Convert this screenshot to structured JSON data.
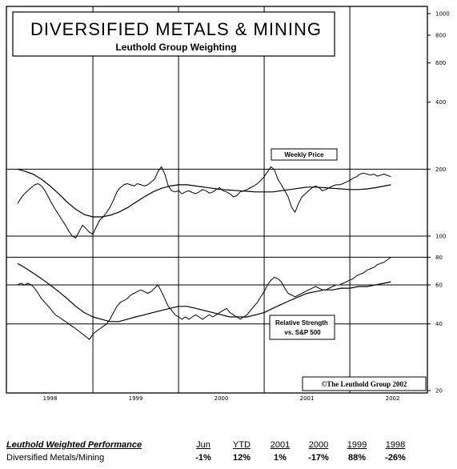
{
  "header": {
    "title": "DIVERSIFIED METALS & MINING",
    "subtitle": "Leuthold Group Weighting"
  },
  "chart_data": {
    "type": "line",
    "x_ticks": [
      "1998",
      "1999",
      "2000",
      "2001",
      "2002"
    ],
    "price_panel": {
      "scale": "log",
      "ylim": [
        100,
        1000
      ],
      "y_ticks": [
        "1000",
        "800",
        "600",
        "400",
        "200",
        "100"
      ],
      "annotation": "Weekly Price",
      "series": [
        {
          "x": [
            1997.62,
            1997.66,
            1997.7,
            1997.74,
            1997.78,
            1997.82,
            1997.86,
            1997.9,
            1997.94,
            1997.98,
            1998.02,
            1998.06,
            1998.1,
            1998.14,
            1998.18,
            1998.22,
            1998.26,
            1998.3,
            1998.34,
            1998.38,
            1998.42,
            1998.46,
            1998.5,
            1998.54,
            1998.58,
            1998.62,
            1998.66,
            1998.7,
            1998.74,
            1998.78,
            1998.82,
            1998.86,
            1998.9,
            1998.94,
            1998.98,
            1999.02,
            1999.06,
            1999.1,
            1999.14,
            1999.18,
            1999.22,
            1999.26,
            1999.3,
            1999.34,
            1999.38,
            1999.42,
            1999.46,
            1999.5,
            1999.54,
            1999.58,
            1999.62,
            1999.66,
            1999.7,
            1999.74,
            1999.78,
            1999.82,
            1999.86,
            1999.9,
            1999.94,
            1999.98,
            2000.02,
            2000.06,
            2000.1,
            2000.14,
            2000.18,
            2000.22,
            2000.26,
            2000.3,
            2000.34,
            2000.38,
            2000.42,
            2000.46,
            2000.5,
            2000.54,
            2000.58,
            2000.62,
            2000.66,
            2000.7,
            2000.74,
            2000.78,
            2000.82,
            2000.86,
            2000.9,
            2000.94,
            2000.98,
            2001.02,
            2001.06,
            2001.1,
            2001.14,
            2001.18,
            2001.22,
            2001.26,
            2001.3,
            2001.34,
            2001.38,
            2001.42,
            2001.46,
            2001.5,
            2001.54,
            2001.58,
            2001.62,
            2001.66,
            2001.7,
            2001.74,
            2001.78,
            2001.82,
            2001.86,
            2001.9,
            2001.94,
            2001.98
          ],
          "y": [
            140,
            148,
            155,
            160,
            165,
            170,
            172,
            168,
            160,
            150,
            140,
            132,
            125,
            118,
            112,
            105,
            100,
            98,
            105,
            112,
            108,
            104,
            102,
            110,
            118,
            122,
            128,
            135,
            145,
            158,
            165,
            170,
            172,
            170,
            168,
            172,
            170,
            168,
            170,
            175,
            180,
            195,
            205,
            190,
            168,
            160,
            158,
            160,
            155,
            158,
            160,
            157,
            155,
            158,
            162,
            160,
            156,
            158,
            162,
            165,
            160,
            158,
            155,
            150,
            152,
            158,
            160,
            162,
            165,
            168,
            172,
            178,
            185,
            195,
            205,
            198,
            180,
            170,
            160,
            150,
            135,
            128,
            140,
            150,
            155,
            160,
            165,
            168,
            165,
            160,
            162,
            165,
            168,
            170,
            170,
            172,
            175,
            178,
            182,
            185,
            190,
            192,
            190,
            188,
            190,
            186,
            188,
            190,
            187,
            185
          ]
        },
        {
          "x": [
            1997.62,
            1997.7,
            1997.8,
            1997.9,
            1998.0,
            1998.1,
            1998.2,
            1998.3,
            1998.4,
            1998.5,
            1998.6,
            1998.7,
            1998.8,
            1998.9,
            1999.0,
            1999.1,
            1999.2,
            1999.3,
            1999.4,
            1999.5,
            1999.6,
            1999.7,
            1999.8,
            1999.9,
            2000.0,
            2000.1,
            2000.2,
            2000.3,
            2000.4,
            2000.5,
            2000.6,
            2000.7,
            2000.8,
            2000.9,
            2001.0,
            2001.1,
            2001.2,
            2001.3,
            2001.4,
            2001.5,
            2001.6,
            2001.7,
            2001.8,
            2001.98
          ],
          "y": [
            200,
            196,
            190,
            180,
            168,
            155,
            142,
            132,
            125,
            122,
            122,
            124,
            128,
            134,
            142,
            150,
            158,
            164,
            168,
            170,
            170,
            168,
            166,
            164,
            162,
            161,
            160,
            159,
            158,
            158,
            158,
            160,
            162,
            164,
            166,
            166,
            165,
            164,
            163,
            162,
            162,
            163,
            165,
            170
          ]
        }
      ]
    },
    "rs_panel": {
      "scale": "log",
      "ylim": [
        20,
        100
      ],
      "y_ticks": [
        "80",
        "60",
        "40",
        "20"
      ],
      "annotation": "Relative Strength vs. S&P 500",
      "series": [
        {
          "x": [
            1997.62,
            1997.66,
            1997.7,
            1997.74,
            1997.78,
            1997.82,
            1997.86,
            1997.9,
            1997.94,
            1997.98,
            1998.02,
            1998.06,
            1998.1,
            1998.14,
            1998.18,
            1998.22,
            1998.26,
            1998.3,
            1998.34,
            1998.38,
            1998.42,
            1998.46,
            1998.5,
            1998.54,
            1998.58,
            1998.62,
            1998.66,
            1998.7,
            1998.74,
            1998.78,
            1998.82,
            1998.86,
            1998.9,
            1998.94,
            1998.98,
            1999.02,
            1999.06,
            1999.1,
            1999.14,
            1999.18,
            1999.22,
            1999.26,
            1999.3,
            1999.34,
            1999.38,
            1999.42,
            1999.46,
            1999.5,
            1999.54,
            1999.58,
            1999.62,
            1999.66,
            1999.7,
            1999.74,
            1999.78,
            1999.82,
            1999.86,
            1999.9,
            1999.94,
            1999.98,
            2000.02,
            2000.06,
            2000.1,
            2000.14,
            2000.18,
            2000.22,
            2000.26,
            2000.3,
            2000.34,
            2000.38,
            2000.42,
            2000.46,
            2000.5,
            2000.54,
            2000.58,
            2000.62,
            2000.66,
            2000.7,
            2000.74,
            2000.78,
            2000.82,
            2000.86,
            2000.9,
            2000.94,
            2000.98,
            2001.02,
            2001.06,
            2001.1,
            2001.14,
            2001.18,
            2001.22,
            2001.26,
            2001.3,
            2001.34,
            2001.38,
            2001.42,
            2001.46,
            2001.5,
            2001.54,
            2001.58,
            2001.62,
            2001.66,
            2001.7,
            2001.74,
            2001.78,
            2001.82,
            2001.86,
            2001.9,
            2001.94,
            2001.98
          ],
          "y": [
            60,
            61,
            60,
            61,
            60,
            58,
            55,
            52,
            50,
            48,
            46,
            44,
            43,
            42,
            41,
            40,
            39,
            38,
            37,
            36,
            35,
            34,
            36,
            37,
            38,
            39,
            40,
            42,
            45,
            48,
            50,
            51,
            52,
            54,
            55,
            56,
            57,
            56,
            55,
            56,
            58,
            60,
            56,
            52,
            48,
            46,
            44,
            43,
            42,
            43,
            42,
            43,
            44,
            43,
            42,
            43,
            44,
            43,
            44,
            45,
            46,
            47,
            45,
            44,
            43,
            42,
            43,
            44,
            46,
            48,
            50,
            53,
            56,
            60,
            63,
            65,
            64,
            62,
            58,
            55,
            54,
            53,
            54,
            55,
            56,
            57,
            58,
            59,
            58,
            57,
            57,
            58,
            59,
            60,
            60,
            61,
            62,
            63,
            64,
            66,
            67,
            68,
            70,
            71,
            72,
            74,
            75,
            76,
            78,
            80
          ]
        },
        {
          "x": [
            1997.62,
            1997.7,
            1997.8,
            1997.9,
            1998.0,
            1998.1,
            1998.2,
            1998.3,
            1998.4,
            1998.5,
            1998.6,
            1998.7,
            1998.8,
            1998.9,
            1999.0,
            1999.1,
            1999.2,
            1999.3,
            1999.4,
            1999.5,
            1999.6,
            1999.7,
            1999.8,
            1999.9,
            2000.0,
            2000.1,
            2000.2,
            2000.3,
            2000.4,
            2000.5,
            2000.6,
            2000.7,
            2000.8,
            2000.9,
            2001.0,
            2001.1,
            2001.2,
            2001.3,
            2001.4,
            2001.5,
            2001.6,
            2001.7,
            2001.8,
            2001.98
          ],
          "y": [
            75,
            72,
            68,
            64,
            60,
            56,
            52,
            48,
            45,
            43,
            42,
            41,
            41,
            42,
            43,
            44,
            45,
            46,
            47,
            48,
            48,
            47,
            46,
            45,
            44,
            43,
            43,
            43,
            44,
            45,
            47,
            49,
            51,
            53,
            55,
            56,
            57,
            57,
            58,
            58,
            59,
            59,
            60,
            62
          ]
        }
      ]
    },
    "copyright": "©The Leuthold Group 2002",
    "grid": true
  },
  "performance": {
    "heading": "Leuthold Weighted Performance",
    "columns": [
      "Jun",
      "YTD",
      "2001",
      "2000",
      "1999",
      "1998"
    ],
    "row_label": "Diversified Metals/Mining",
    "values": [
      "-1%",
      "12%",
      "1%",
      "-17%",
      "88%",
      "-26%"
    ]
  }
}
